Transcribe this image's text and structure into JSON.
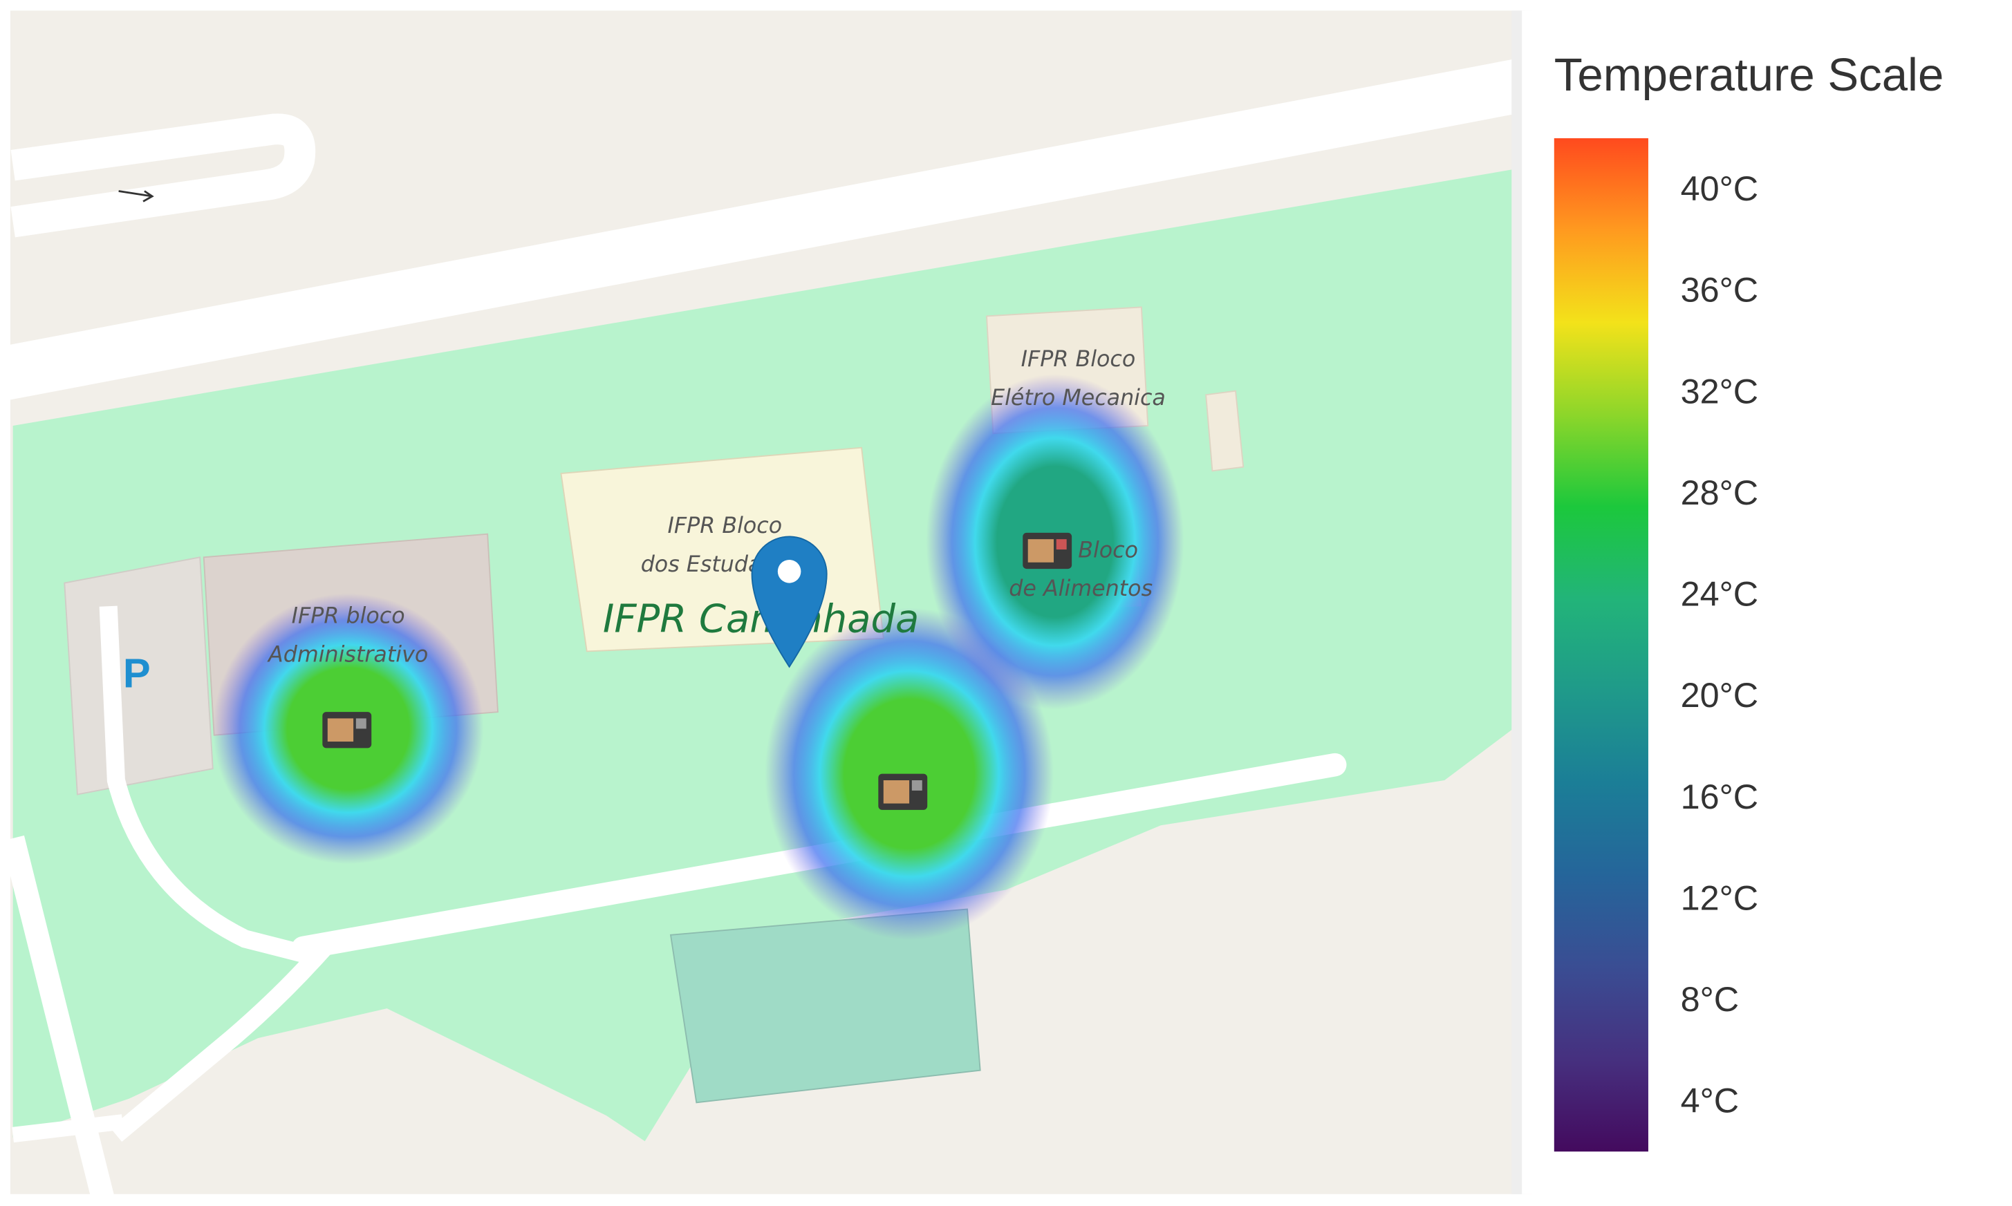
{
  "map": {
    "labels": [
      {
        "lines": [
          "IFPR bloco",
          "Administrativo"
        ]
      },
      {
        "lines": [
          "IFPR Bloco",
          "dos Estudantes"
        ]
      },
      {
        "lines": [
          "IFPR Bloco",
          "Elétro Mecanica"
        ]
      },
      {
        "lines": [
          "IFPR Bloco",
          "de Alimentos"
        ]
      }
    ],
    "place_name": "IFPR Caminhada",
    "parking": "P"
  },
  "heatmap": {
    "values": [
      29,
      29,
      22
    ]
  },
  "legend": {
    "title": "Temperature Scale",
    "range": [
      2,
      42
    ],
    "colors": [
      "#440a5e",
      "#46307f",
      "#3a4d93",
      "#25659a",
      "#1b7e97",
      "#1f9a8a",
      "#22b479",
      "#1cc83c",
      "#8dd62a",
      "#f3e21a",
      "#ff9a1f",
      "#ff4a1e"
    ],
    "ticks": [
      {
        "value": 4,
        "label": "4°C"
      },
      {
        "value": 8,
        "label": "8°C"
      },
      {
        "value": 12,
        "label": "12°C"
      },
      {
        "value": 16,
        "label": "16°C"
      },
      {
        "value": 20,
        "label": "20°C"
      },
      {
        "value": 24,
        "label": "24°C"
      },
      {
        "value": 28,
        "label": "28°C"
      },
      {
        "value": 32,
        "label": "32°C"
      },
      {
        "value": 36,
        "label": "36°C"
      },
      {
        "value": 40,
        "label": "40°C"
      }
    ]
  }
}
